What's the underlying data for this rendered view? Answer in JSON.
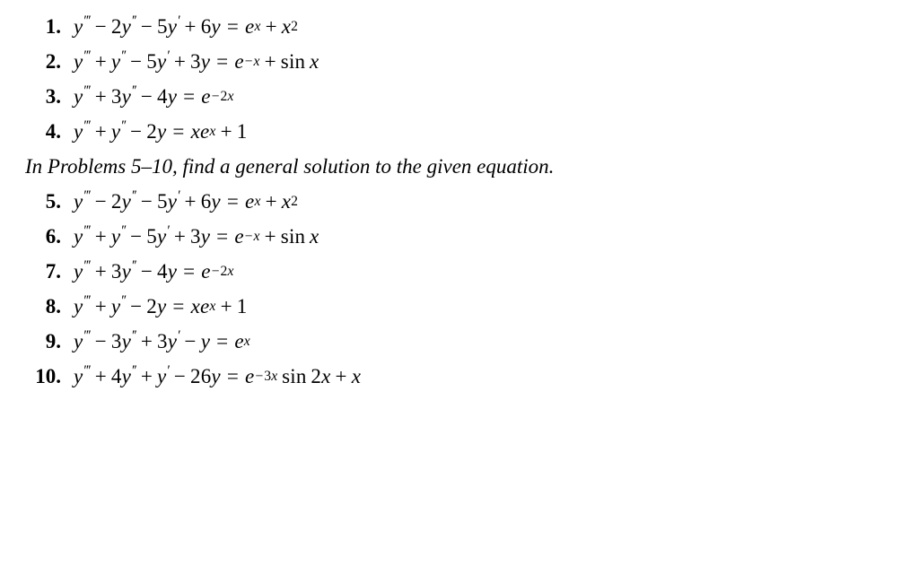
{
  "items": [
    {
      "n": "1.",
      "eq": "y''' − 2y'' − 5y' + 6y = e^x + x^2"
    },
    {
      "n": "2.",
      "eq": "y''' + y'' − 5y' + 3y = e^{-x} + sin x"
    },
    {
      "n": "3.",
      "eq": "y''' + 3y'' − 4y = e^{-2x}"
    },
    {
      "n": "4.",
      "eq": "y''' + y'' − 2y = x e^x + 1"
    }
  ],
  "instruction": "In Problems 5–10, find a general solution to the given equation.",
  "items2": [
    {
      "n": "5.",
      "eq": "y''' − 2y'' − 5y' + 6y = e^x + x^2"
    },
    {
      "n": "6.",
      "eq": "y''' + y'' − 5y' + 3y = e^{-x} + sin x"
    },
    {
      "n": "7.",
      "eq": "y''' + 3y'' − 4y = e^{-2x}"
    },
    {
      "n": "8.",
      "eq": "y''' + y'' − 2y = x e^x + 1"
    },
    {
      "n": "9.",
      "eq": "y''' − 3y'' + 3y' − y = e^x"
    },
    {
      "n": "10.",
      "eq": "y''' + 4y'' + y' − 26y = e^{-3x} sin 2x + x"
    }
  ],
  "style": {
    "font_family": "Times New Roman",
    "font_size_pt": 17,
    "text_color": "#000000",
    "background_color": "#ffffff",
    "number_bold": true
  }
}
